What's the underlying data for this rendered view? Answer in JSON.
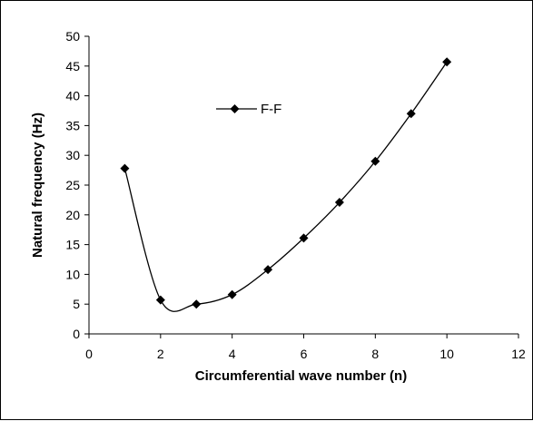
{
  "chart_data": {
    "type": "line",
    "title": "",
    "xlabel": "Circumferential wave number (n)",
    "ylabel": "Natural frequency (Hz)",
    "xlim": [
      0,
      12
    ],
    "ylim": [
      0,
      50
    ],
    "x_ticks": [
      0,
      2,
      4,
      6,
      8,
      10,
      12
    ],
    "y_ticks": [
      0,
      5,
      10,
      15,
      20,
      25,
      30,
      35,
      40,
      45,
      50
    ],
    "grid": false,
    "smooth": true,
    "marker": "diamond",
    "legend": {
      "placement": "upper-center",
      "entries": [
        "F-F"
      ]
    },
    "series": [
      {
        "name": "F-F",
        "color": "#000000",
        "x": [
          1,
          2,
          3,
          4,
          5,
          6,
          7,
          8,
          9,
          10
        ],
        "y": [
          27.8,
          5.7,
          5.0,
          6.6,
          10.8,
          16.1,
          22.1,
          29.0,
          37.0,
          45.7
        ]
      }
    ]
  }
}
